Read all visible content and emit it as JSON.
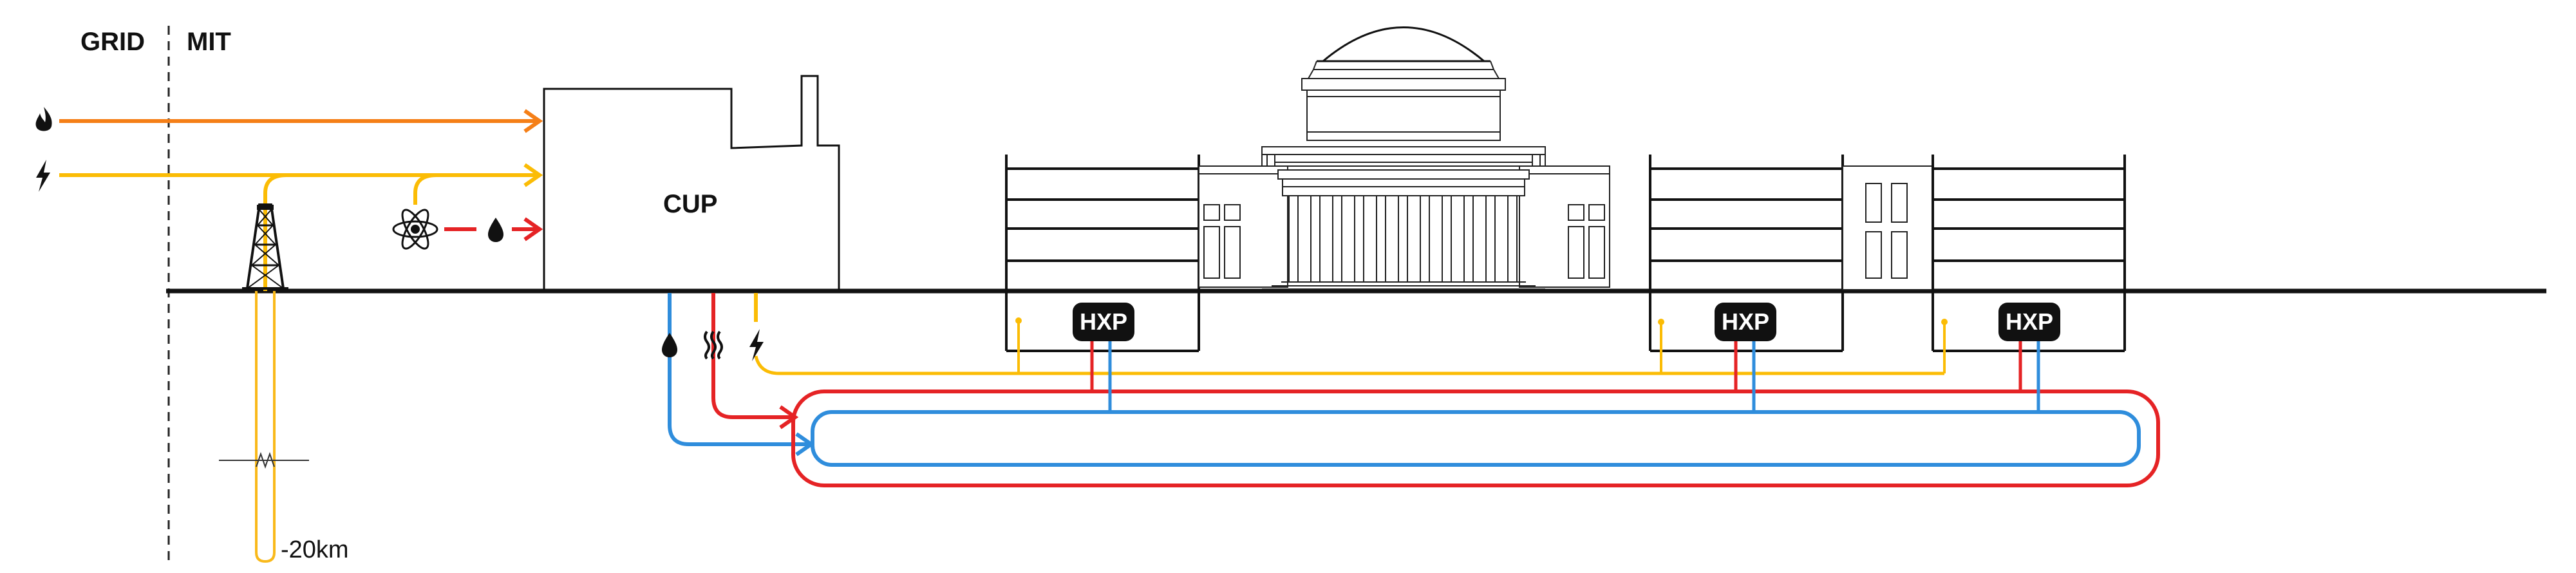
{
  "labels": {
    "grid": "GRID",
    "mit": "MIT",
    "cup": "CUP",
    "depth": "-20km",
    "hxp": "HXP"
  },
  "colors": {
    "gas": "#f57f17",
    "electric": "#fbbc05",
    "geothermal": "#f9b91a",
    "hot_loop": "#e52325",
    "cold_loop": "#2f8ddc",
    "ink": "#111111"
  },
  "icons": {
    "gas_source": "flame-icon",
    "electric_source": "lightning-icon",
    "nuclear": "atom-icon",
    "water": "droplet-icon",
    "heat": "heat-waves-icon",
    "power": "lightning-icon"
  }
}
